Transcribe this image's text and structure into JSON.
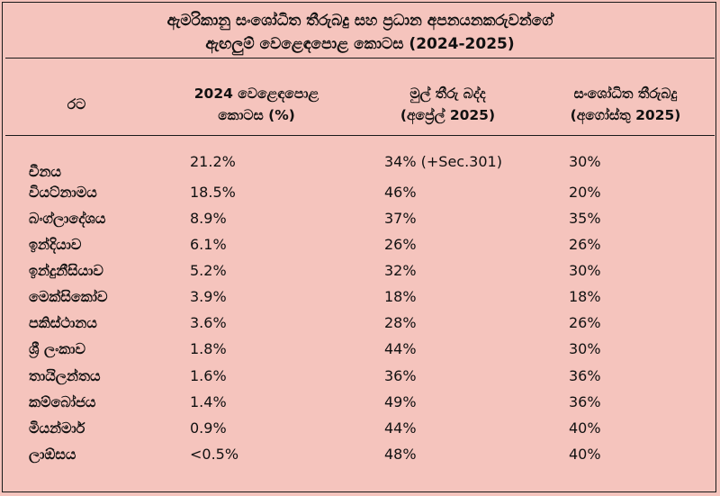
{
  "title_line1": "ඇමරිකානු සංශෝධිත තීරුබදු සහ ප්‍රධාන අපනයනකරුවන්ගේ",
  "title_line2": "ඇඟලුම් වෙළෙඳපොළ කොටස (2024-2025)",
  "headers": {
    "country": "රට",
    "share_l1": "2024 වෙළෙඳපොළ",
    "share_l2": "කොටස (%)",
    "original_l1": "මුල් තීරු බද්ද",
    "original_l2": "(අප්‍රේල් 2025)",
    "revised_l1": "සංශෝධිත තීරුබදු",
    "revised_l2": "(අගෝස්තු 2025)"
  },
  "rows": [
    {
      "country": "චීනය",
      "share": "21.2%",
      "original": "34% (+Sec.301)",
      "revised": "30%"
    },
    {
      "country": "වියට්නාමය",
      "share": "18.5%",
      "original": "46%",
      "revised": "20%"
    },
    {
      "country": "බංග්ලාදේශය",
      "share": "8.9%",
      "original": "37%",
      "revised": "35%"
    },
    {
      "country": "ඉන්දියාව",
      "share": "6.1%",
      "original": "26%",
      "revised": "26%"
    },
    {
      "country": "ඉන්දුනීසියාව",
      "share": "5.2%",
      "original": "32%",
      "revised": "30%"
    },
    {
      "country": "මෙක්සිකෝව",
      "share": "3.9%",
      "original": "18%",
      "revised": "18%"
    },
    {
      "country": "පකිස්ථානය",
      "share": "3.6%",
      "original": "28%",
      "revised": "26%"
    },
    {
      "country": "ශ්‍රී ලංකාව",
      "share": "1.8%",
      "original": "44%",
      "revised": "30%"
    },
    {
      "country": "තායිලන්තය",
      "share": "1.6%",
      "original": "36%",
      "revised": "36%"
    },
    {
      "country": "කම්බෝජය",
      "share": "1.4%",
      "original": "49%",
      "revised": "36%"
    },
    {
      "country": "මියන්මාර්",
      "share": "0.9%",
      "original": "44%",
      "revised": "40%"
    },
    {
      "country": "ලාඕසය",
      "share": "<0.5%",
      "original": "48%",
      "revised": "40%"
    }
  ]
}
